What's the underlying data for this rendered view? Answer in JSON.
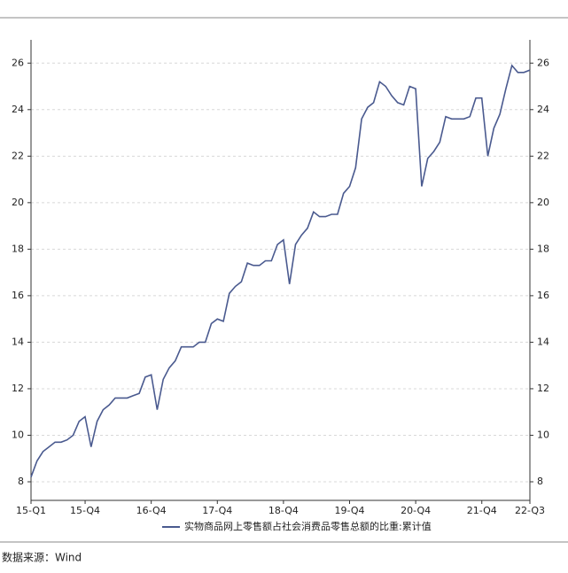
{
  "chart_data": {
    "type": "line",
    "series": [
      {
        "name": "实物商品网上零售额占社会消费品零售总额的比重:累计值",
        "color": "#4a5a8f",
        "values": [
          8.2,
          8.9,
          9.3,
          9.5,
          9.7,
          9.7,
          9.8,
          10.0,
          10.6,
          10.8,
          9.5,
          10.6,
          11.1,
          11.3,
          11.6,
          11.6,
          11.6,
          11.7,
          11.8,
          12.5,
          12.6,
          11.1,
          12.4,
          12.9,
          13.2,
          13.8,
          13.8,
          13.8,
          14.0,
          14.0,
          14.8,
          15.0,
          14.9,
          16.1,
          16.4,
          16.6,
          17.4,
          17.3,
          17.3,
          17.5,
          17.5,
          18.2,
          18.4,
          16.5,
          18.2,
          18.6,
          18.9,
          19.6,
          19.4,
          19.4,
          19.5,
          19.5,
          20.4,
          20.7,
          21.5,
          23.6,
          24.1,
          24.3,
          25.2,
          25.0,
          24.6,
          24.3,
          24.2,
          25.0,
          24.9,
          20.7,
          21.9,
          22.2,
          22.6,
          23.7,
          23.6,
          23.6,
          23.6,
          23.7,
          24.5,
          24.5,
          22.0,
          23.2,
          23.8,
          24.9,
          25.9,
          25.6,
          25.6,
          25.7
        ]
      }
    ],
    "categories": [
      "15-Q1",
      null,
      null,
      null,
      null,
      null,
      null,
      null,
      null,
      "15-Q4",
      null,
      null,
      null,
      null,
      null,
      null,
      null,
      null,
      null,
      null,
      "16-Q4",
      null,
      null,
      null,
      null,
      null,
      null,
      null,
      null,
      null,
      null,
      "17-Q4",
      null,
      null,
      null,
      null,
      null,
      null,
      null,
      null,
      null,
      null,
      "18-Q4",
      null,
      null,
      null,
      null,
      null,
      null,
      null,
      null,
      null,
      null,
      "19-Q4",
      null,
      null,
      null,
      null,
      null,
      null,
      null,
      null,
      null,
      null,
      "20-Q4",
      null,
      null,
      null,
      null,
      null,
      null,
      null,
      null,
      null,
      null,
      "21-Q4",
      null,
      null,
      null,
      null,
      null,
      null,
      null,
      "22-Q3"
    ],
    "ylim": [
      7.2,
      27
    ],
    "yticks": [
      8,
      10,
      12,
      14,
      16,
      18,
      20,
      22,
      24,
      26
    ],
    "grid": true,
    "source": "数据来源：Wind"
  }
}
